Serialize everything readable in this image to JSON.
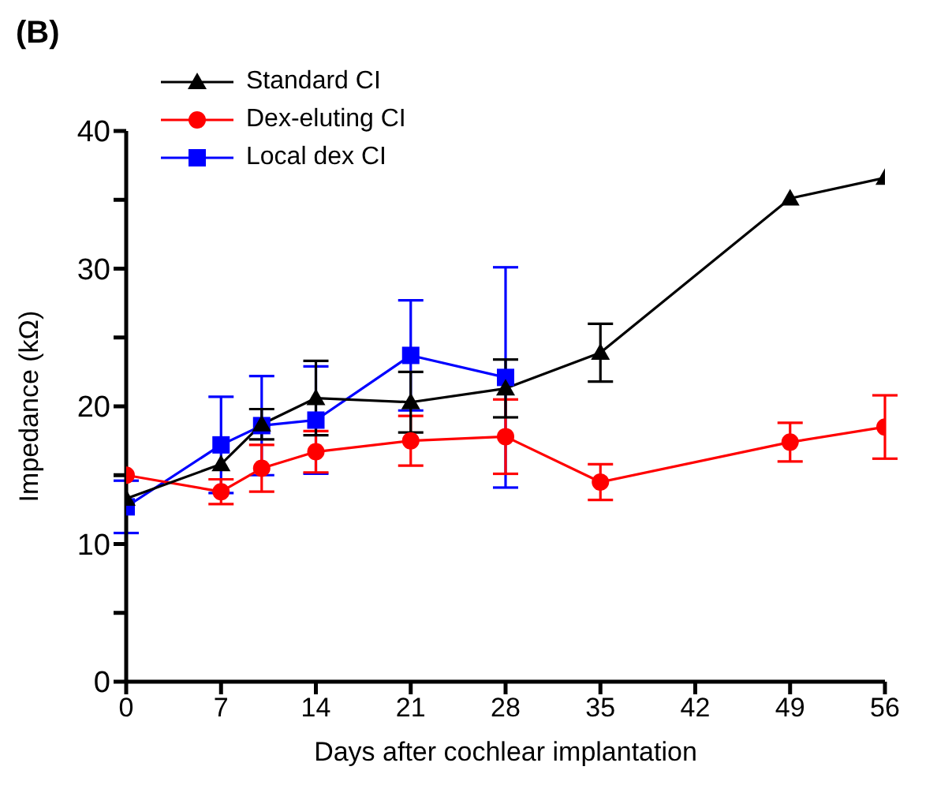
{
  "chart_data": {
    "type": "line",
    "title": "(B)",
    "xlabel": "Days after cochlear implantation",
    "ylabel": "Impedance (kΩ)",
    "x": [
      0,
      7,
      10,
      14,
      21,
      28,
      35,
      49,
      56
    ],
    "xlim": [
      0,
      56
    ],
    "xticks": [
      0,
      7,
      14,
      21,
      28,
      35,
      42,
      49,
      56
    ],
    "ylim": [
      0,
      40
    ],
    "yticks": [
      0,
      {
        "value": 5,
        "label": null
      },
      10,
      {
        "value": 15,
        "label": null
      },
      20,
      {
        "value": 25,
        "label": null
      },
      30,
      {
        "value": 35,
        "label": null
      },
      40
    ],
    "grid": false,
    "legend": "top left",
    "line_style": "solid",
    "series": [
      {
        "name": "Standard CI",
        "color": "#000000",
        "marker": "triangle",
        "values": [
          13.3,
          15.8,
          18.7,
          20.6,
          20.3,
          21.3,
          23.9,
          35.1,
          36.6
        ],
        "errors": [
          null,
          null,
          1.1,
          2.7,
          2.2,
          2.1,
          2.1,
          null,
          null
        ]
      },
      {
        "name": "Dex-eluting CI",
        "color": "#ff0000",
        "marker": "circle",
        "values": [
          15.0,
          13.8,
          15.5,
          16.7,
          17.5,
          17.8,
          14.5,
          17.4,
          18.5
        ],
        "errors": [
          null,
          0.9,
          1.7,
          1.5,
          1.8,
          2.7,
          1.3,
          1.4,
          2.3
        ]
      },
      {
        "name": "Local dex CI",
        "color": "#0000ff",
        "marker": "square",
        "x": [
          0,
          7,
          10,
          14,
          21,
          28
        ],
        "values": [
          12.7,
          17.2,
          18.6,
          19.0,
          23.7,
          22.1
        ],
        "errors": [
          1.9,
          3.5,
          3.6,
          3.9,
          4.0,
          8.0
        ]
      }
    ]
  }
}
